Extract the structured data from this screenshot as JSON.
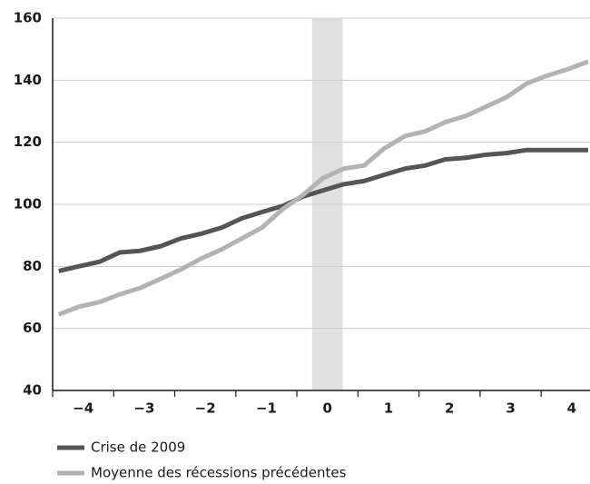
{
  "chart_data": {
    "type": "line",
    "x": [
      -4.4,
      -4.07,
      -3.73,
      -3.4,
      -3.07,
      -2.73,
      -2.4,
      -2.07,
      -1.73,
      -1.4,
      -1.07,
      -0.73,
      -0.4,
      -0.07,
      0.27,
      0.6,
      0.93,
      1.27,
      1.6,
      1.93,
      2.27,
      2.6,
      2.93,
      3.27,
      3.6,
      3.93,
      4.27
    ],
    "series": [
      {
        "name": "Crise de 2009",
        "color": "#555555",
        "values": [
          78.5,
          80,
          81.5,
          84.5,
          85,
          86.5,
          89,
          90.5,
          92.5,
          95.5,
          97.5,
          99.5,
          102.5,
          104.5,
          106.5,
          107.5,
          109.5,
          111.5,
          112.5,
          114.5,
          115,
          116,
          116.5,
          117.5,
          117.5,
          117.5,
          117.5
        ]
      },
      {
        "name": "Moyenne des récessions précédentes",
        "color": "#b3b3b3",
        "values": [
          64.5,
          67,
          68.5,
          71,
          73,
          76,
          79,
          82.5,
          85.5,
          89,
          92.5,
          98.5,
          103,
          108.5,
          111.5,
          112.5,
          118,
          122,
          123.5,
          126.5,
          128.5,
          131.5,
          134.5,
          139,
          141.5,
          143.5,
          146
        ]
      }
    ],
    "xlim": [
      -4.5,
      4.3
    ],
    "xticks": [
      {
        "value": -4,
        "label": "−4"
      },
      {
        "value": -3,
        "label": "−3"
      },
      {
        "value": -2,
        "label": "−2"
      },
      {
        "value": -1,
        "label": "−1"
      },
      0,
      1,
      2,
      3,
      4
    ],
    "xtick_marks": [
      -4.5,
      -3.5,
      -2.5,
      -1.5,
      -0.5,
      0.5,
      1.5,
      2.5,
      3.5
    ],
    "ylim": [
      40,
      160
    ],
    "yticks": [
      40,
      60,
      80,
      100,
      120,
      140,
      160
    ],
    "shaded_region": [
      -0.25,
      0.25
    ],
    "shade_color": "#e0e0e0",
    "grid": true,
    "legend": "bottom"
  }
}
